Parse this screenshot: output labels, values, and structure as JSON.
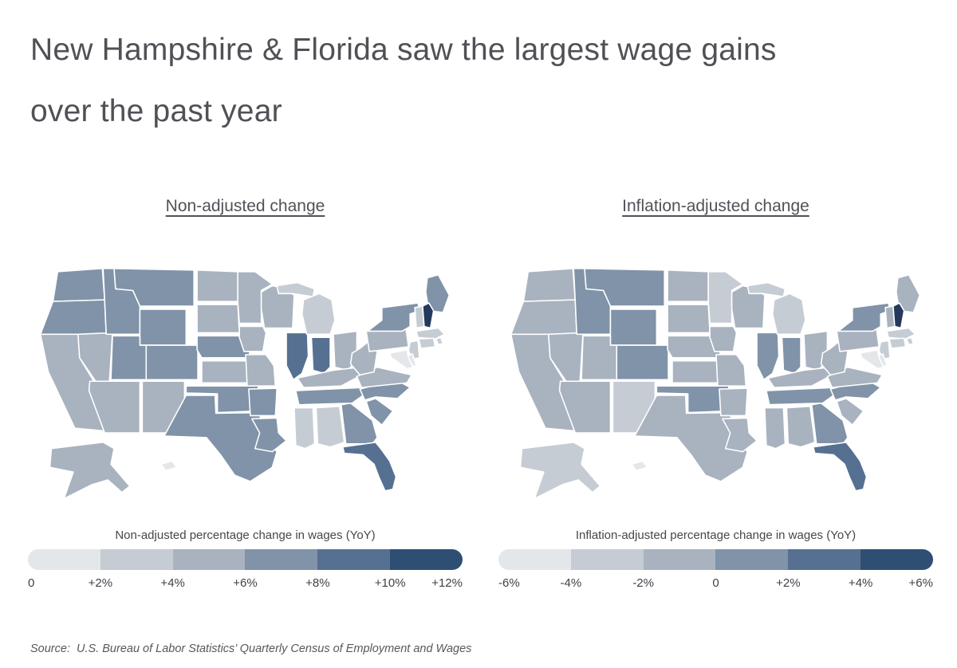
{
  "page": {
    "title": "New Hampshire & Florida saw the largest wage gains over the past year",
    "source": "Source:  U.S. Bureau of Labor Statistics’ Quarterly Census of Employment and Wages"
  },
  "colors": {
    "background": "#ffffff",
    "title_text": "#4f5156",
    "subtitle_text": "#4f5257",
    "tick_text": "#3e4247",
    "state_border": "#ffffff"
  },
  "chart_data": [
    {
      "type": "choropleth",
      "region": "us-states",
      "subtitle": "Non-adjusted change",
      "legend_title": "Non-adjusted percentage change in wages (YoY)",
      "legend_ticks": [
        "0",
        "+2%",
        "+4%",
        "+6%",
        "+8%",
        "+10%",
        "+12%"
      ],
      "legend_position": "bottom",
      "unit": "percent",
      "bin_edges": [
        0,
        2,
        4,
        6,
        8,
        10,
        12
      ],
      "bin_colors": [
        "#e4e7ea",
        "#c6ccd3",
        "#a9b2bf",
        "#8093a8",
        "#567092",
        "#2f4e74"
      ],
      "over_color": "#24395b",
      "values_pct": {
        "WA": 7.3,
        "OR": 7.2,
        "CA": 5.2,
        "NV": 5.0,
        "ID": 7.5,
        "MT": 7.4,
        "WY": 7.0,
        "UT": 7.6,
        "CO": 7.2,
        "AZ": 4.8,
        "NM": 4.6,
        "ND": 4.8,
        "SD": 4.5,
        "NE": 6.9,
        "KS": 4.9,
        "OK": 6.7,
        "TX": 7.1,
        "MN": 4.7,
        "IA": 4.6,
        "MO": 4.8,
        "AR": 6.5,
        "LA": 6.8,
        "WI": 4.8,
        "IL": 8.6,
        "MI": 3.2,
        "IN": 8.4,
        "OH": 5.4,
        "KY": 5.1,
        "TN": 7.2,
        "MS": 3.4,
        "AL": 3.8,
        "GA": 7.0,
        "FL": 9.6,
        "SC": 7.0,
        "NC": 7.3,
        "VA": 5.0,
        "WV": 5.2,
        "PA": 4.9,
        "NY": 7.1,
        "NJ": 3.1,
        "DE": 1.5,
        "MD": 1.8,
        "VT": 3.3,
        "NH": 12.6,
        "ME": 6.9,
        "MA": 3.0,
        "RI": 2.9,
        "CT": 2.8,
        "AK": 5.4,
        "HI": 1.2
      }
    },
    {
      "type": "choropleth",
      "region": "us-states",
      "subtitle": "Inflation-adjusted change",
      "legend_title": "Inflation-adjusted percentage change in wages (YoY)",
      "legend_ticks": [
        "-6%",
        "-4%",
        "-2%",
        "0",
        "+2%",
        "+4%",
        "+6%"
      ],
      "legend_position": "bottom",
      "unit": "percent",
      "bin_edges": [
        -6,
        -4,
        -2,
        0,
        2,
        4,
        6
      ],
      "bin_colors": [
        "#e4e7ea",
        "#c6ccd3",
        "#a9b2bf",
        "#8093a8",
        "#567092",
        "#2f4e74"
      ],
      "over_color": "#24395b",
      "values_pct": {
        "WA": -0.3,
        "OR": -0.6,
        "CA": -0.9,
        "NV": -1.1,
        "ID": 1.0,
        "MT": 1.2,
        "WY": 0.9,
        "UT": -0.5,
        "CO": 0.8,
        "AZ": -1.0,
        "NM": -2.9,
        "ND": -0.7,
        "SD": -0.8,
        "NE": -0.6,
        "KS": -0.7,
        "OK": 0.5,
        "TX": -0.7,
        "MN": -2.7,
        "IA": -0.9,
        "MO": -0.8,
        "AR": -0.5,
        "LA": -0.4,
        "WI": -0.5,
        "IL": 0.9,
        "MI": -2.4,
        "IN": 0.8,
        "OH": -0.4,
        "KY": -0.6,
        "TN": 0.8,
        "MS": -1.2,
        "AL": -0.8,
        "GA": 0.6,
        "FL": 3.2,
        "SC": -0.5,
        "NC": 0.9,
        "VA": -0.9,
        "WV": -0.7,
        "PA": -0.9,
        "NY": 0.7,
        "NJ": -2.6,
        "DE": -4.5,
        "MD": -4.2,
        "VT": -0.5,
        "NH": 6.2,
        "ME": -0.5,
        "MA": -2.6,
        "RI": -2.8,
        "CT": -2.5,
        "AK": -2.8,
        "HI": -4.8
      }
    }
  ]
}
